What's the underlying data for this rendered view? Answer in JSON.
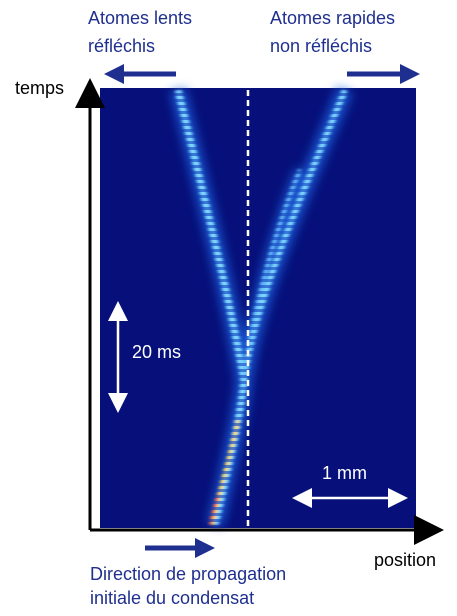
{
  "labels": {
    "slow_atoms": [
      "Atomes lents",
      "réfléchis"
    ],
    "fast_atoms": [
      "Atomes rapides",
      "non réfléchis"
    ],
    "time_axis": "temps",
    "time_scale": "20 ms",
    "length_scale": "1 mm",
    "position_axis": "position",
    "direction": [
      "Direction de propagation",
      "initiale du condensat"
    ]
  }
}
